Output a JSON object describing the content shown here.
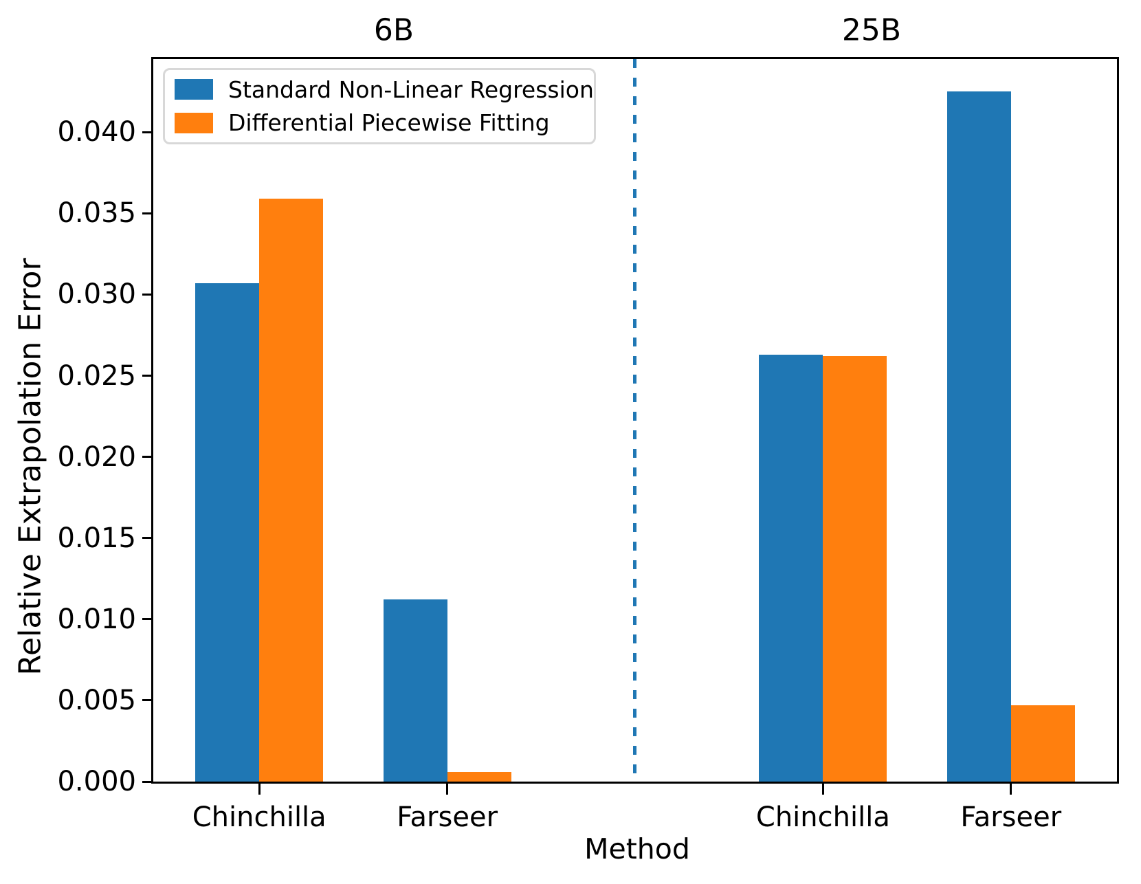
{
  "chart_data": {
    "type": "bar",
    "titles": [
      "6B",
      "25B"
    ],
    "xlabel": "Method",
    "ylabel": "Relative Extrapolation Error",
    "categories": [
      "Chinchilla",
      "Farseer",
      "Chinchilla",
      "Farseer"
    ],
    "category_sections": [
      "6B",
      "6B",
      "25B",
      "25B"
    ],
    "series": [
      {
        "name": "Standard Non-Linear Regression",
        "color": "#1f77b4",
        "values": [
          0.0307,
          0.0112,
          0.0263,
          0.0425
        ]
      },
      {
        "name": "Differential Piecewise Fitting",
        "color": "#ff7f0e",
        "values": [
          0.0359,
          0.0006,
          0.0262,
          0.0047
        ]
      }
    ],
    "ylim": [
      0,
      0.0445
    ],
    "ytick_labels": [
      "0.000",
      "0.005",
      "0.010",
      "0.015",
      "0.020",
      "0.025",
      "0.030",
      "0.035",
      "0.040"
    ],
    "separator": {
      "orientation": "vertical",
      "position_fraction": 0.5,
      "style": "dashed",
      "color": "#1f77b4"
    },
    "legend_position": "upper left",
    "grid": false
  }
}
